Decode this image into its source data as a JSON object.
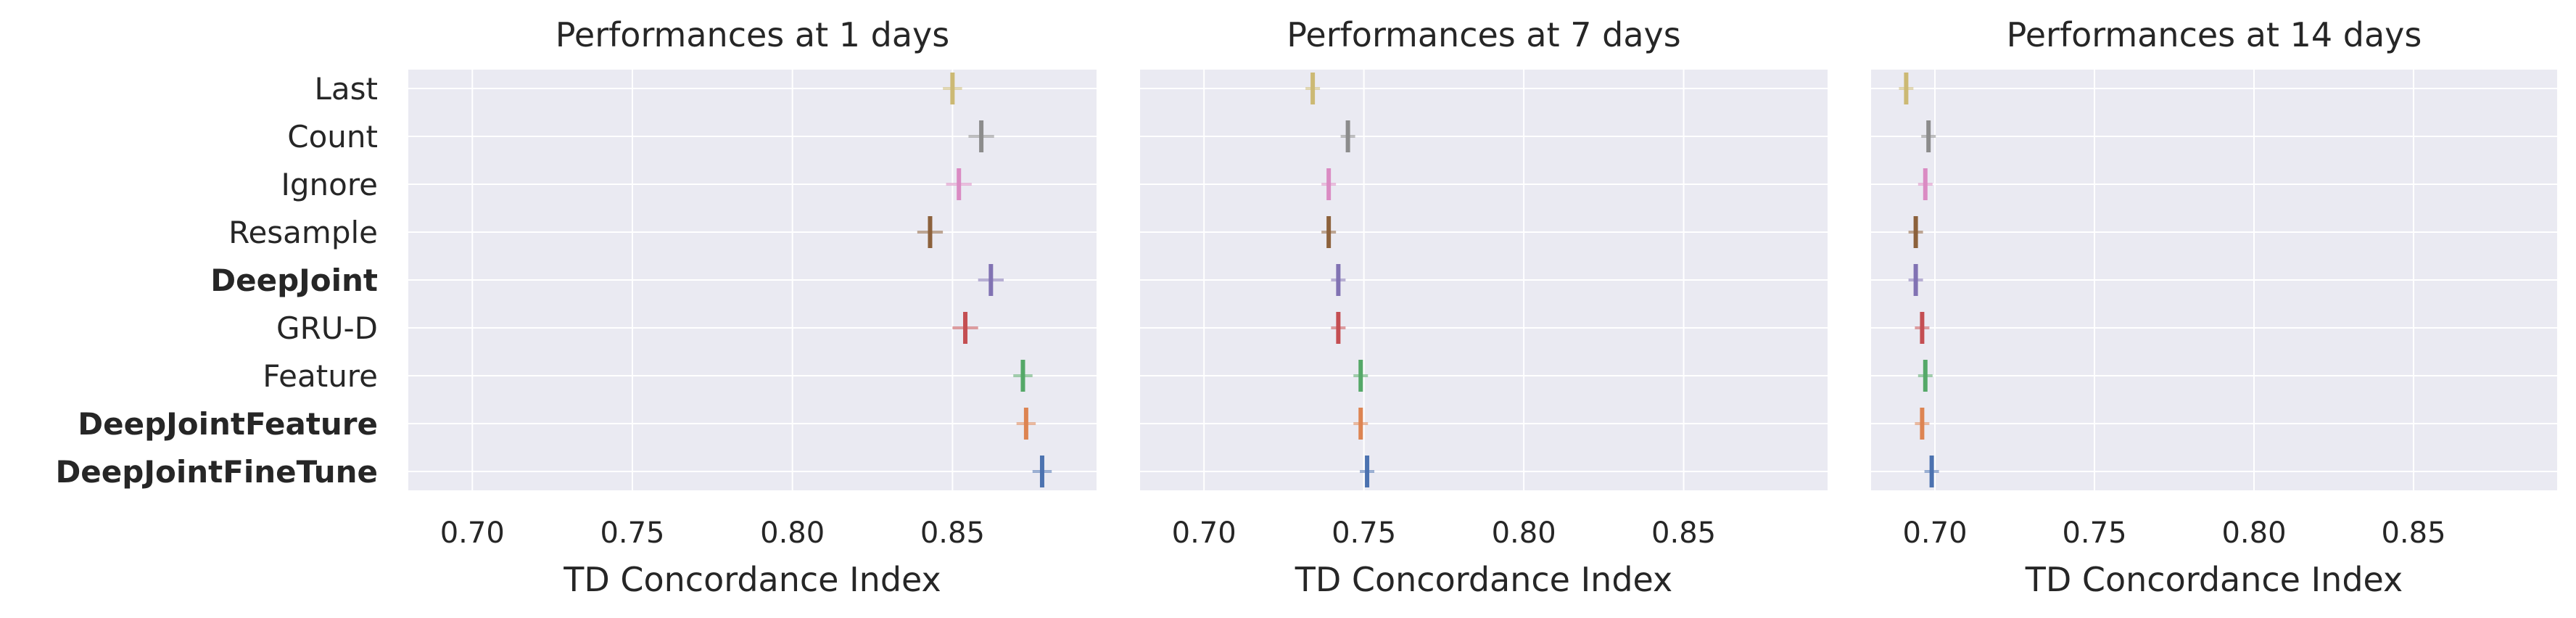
{
  "chart_data": [
    {
      "type": "scatter",
      "title": "Performances at 1 days",
      "xlabel": "TD Concordance Index",
      "ylabel": "",
      "xlim": [
        0.68,
        0.895
      ],
      "xticks": [
        "0.70",
        "0.75",
        "0.80",
        "0.85"
      ],
      "grid": true,
      "categories": [
        "Last",
        "Count",
        "Ignore",
        "Resample",
        "DeepJoint",
        "GRU-D",
        "Feature",
        "DeepJointFeature",
        "DeepJointFineTune"
      ],
      "bold_categories": [
        "DeepJoint",
        "DeepJointFeature",
        "DeepJointFineTune"
      ],
      "series": [
        {
          "category": "Last",
          "mean": 0.85,
          "lo": 0.847,
          "hi": 0.853,
          "color": "#ccb974"
        },
        {
          "category": "Count",
          "mean": 0.859,
          "lo": 0.855,
          "hi": 0.863,
          "color": "#8c8c8c"
        },
        {
          "category": "Ignore",
          "mean": 0.852,
          "lo": 0.848,
          "hi": 0.856,
          "color": "#da8bc3"
        },
        {
          "category": "Resample",
          "mean": 0.843,
          "lo": 0.839,
          "hi": 0.847,
          "color": "#8c613c"
        },
        {
          "category": "DeepJoint",
          "mean": 0.862,
          "lo": 0.858,
          "hi": 0.866,
          "color": "#8172b3"
        },
        {
          "category": "GRU-D",
          "mean": 0.854,
          "lo": 0.85,
          "hi": 0.858,
          "color": "#c44e52"
        },
        {
          "category": "Feature",
          "mean": 0.872,
          "lo": 0.869,
          "hi": 0.875,
          "color": "#55a868"
        },
        {
          "category": "DeepJointFeature",
          "mean": 0.873,
          "lo": 0.87,
          "hi": 0.876,
          "color": "#dd8452"
        },
        {
          "category": "DeepJointFineTune",
          "mean": 0.878,
          "lo": 0.875,
          "hi": 0.881,
          "color": "#4c72b0"
        }
      ]
    },
    {
      "type": "scatter",
      "title": "Performances at 7 days",
      "xlabel": "TD Concordance Index",
      "ylabel": "",
      "xlim": [
        0.68,
        0.895
      ],
      "xticks": [
        "0.70",
        "0.75",
        "0.80",
        "0.85"
      ],
      "grid": true,
      "categories": [
        "Last",
        "Count",
        "Ignore",
        "Resample",
        "DeepJoint",
        "GRU-D",
        "Feature",
        "DeepJointFeature",
        "DeepJointFineTune"
      ],
      "series": [
        {
          "category": "Last",
          "mean": 0.734,
          "lo": 0.732,
          "hi": 0.736,
          "color": "#ccb974"
        },
        {
          "category": "Count",
          "mean": 0.745,
          "lo": 0.743,
          "hi": 0.747,
          "color": "#8c8c8c"
        },
        {
          "category": "Ignore",
          "mean": 0.739,
          "lo": 0.737,
          "hi": 0.741,
          "color": "#da8bc3"
        },
        {
          "category": "Resample",
          "mean": 0.739,
          "lo": 0.737,
          "hi": 0.741,
          "color": "#8c613c"
        },
        {
          "category": "DeepJoint",
          "mean": 0.742,
          "lo": 0.74,
          "hi": 0.744,
          "color": "#8172b3"
        },
        {
          "category": "GRU-D",
          "mean": 0.742,
          "lo": 0.74,
          "hi": 0.744,
          "color": "#c44e52"
        },
        {
          "category": "Feature",
          "mean": 0.749,
          "lo": 0.747,
          "hi": 0.751,
          "color": "#55a868"
        },
        {
          "category": "DeepJointFeature",
          "mean": 0.749,
          "lo": 0.747,
          "hi": 0.751,
          "color": "#dd8452"
        },
        {
          "category": "DeepJointFineTune",
          "mean": 0.751,
          "lo": 0.749,
          "hi": 0.753,
          "color": "#4c72b0"
        }
      ]
    },
    {
      "type": "scatter",
      "title": "Performances at 14 days",
      "xlabel": "TD Concordance Index",
      "ylabel": "",
      "xlim": [
        0.68,
        0.895
      ],
      "xticks": [
        "0.70",
        "0.75",
        "0.80",
        "0.85"
      ],
      "grid": true,
      "categories": [
        "Last",
        "Count",
        "Ignore",
        "Resample",
        "DeepJoint",
        "GRU-D",
        "Feature",
        "DeepJointFeature",
        "DeepJointFineTune"
      ],
      "series": [
        {
          "category": "Last",
          "mean": 0.691,
          "lo": 0.689,
          "hi": 0.693,
          "color": "#ccb974"
        },
        {
          "category": "Count",
          "mean": 0.698,
          "lo": 0.696,
          "hi": 0.7,
          "color": "#8c8c8c"
        },
        {
          "category": "Ignore",
          "mean": 0.697,
          "lo": 0.695,
          "hi": 0.699,
          "color": "#da8bc3"
        },
        {
          "category": "Resample",
          "mean": 0.694,
          "lo": 0.692,
          "hi": 0.696,
          "color": "#8c613c"
        },
        {
          "category": "DeepJoint",
          "mean": 0.694,
          "lo": 0.692,
          "hi": 0.696,
          "color": "#8172b3"
        },
        {
          "category": "GRU-D",
          "mean": 0.696,
          "lo": 0.694,
          "hi": 0.698,
          "color": "#c44e52"
        },
        {
          "category": "Feature",
          "mean": 0.697,
          "lo": 0.695,
          "hi": 0.699,
          "color": "#55a868"
        },
        {
          "category": "DeepJointFeature",
          "mean": 0.696,
          "lo": 0.694,
          "hi": 0.698,
          "color": "#dd8452"
        },
        {
          "category": "DeepJointFineTune",
          "mean": 0.699,
          "lo": 0.697,
          "hi": 0.701,
          "color": "#4c72b0"
        }
      ]
    }
  ]
}
